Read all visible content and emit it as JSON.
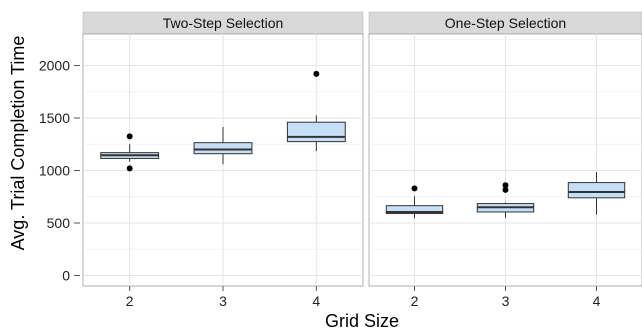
{
  "chart_data": {
    "type": "boxplot",
    "xlabel": "Grid Size",
    "ylabel": "Avg. Trial Completion Time",
    "ylim": [
      -100,
      2300
    ],
    "yticks": [
      0,
      500,
      1000,
      1500,
      2000
    ],
    "categories": [
      "2",
      "3",
      "4"
    ],
    "grid": true,
    "colors": {
      "box_fill": "#c6dff7",
      "box_stroke": "#333333",
      "strip_fill": "#d9d9d9",
      "panel_fill": "#ffffff",
      "grid": "#e6e6e6"
    },
    "panels": [
      {
        "title": "Two-Step Selection",
        "boxes": [
          {
            "category": "2",
            "whisker_low": 1085,
            "q1": 1115,
            "median": 1145,
            "q3": 1170,
            "whisker_high": 1250,
            "outliers": [
              1020,
              1325
            ]
          },
          {
            "category": "3",
            "whisker_low": 1060,
            "q1": 1160,
            "median": 1200,
            "q3": 1265,
            "whisker_high": 1415,
            "outliers": []
          },
          {
            "category": "4",
            "whisker_low": 1185,
            "q1": 1275,
            "median": 1320,
            "q3": 1460,
            "whisker_high": 1525,
            "outliers": [
              1920
            ]
          }
        ]
      },
      {
        "title": "One-Step Selection",
        "boxes": [
          {
            "category": "2",
            "whisker_low": 545,
            "q1": 590,
            "median": 605,
            "q3": 665,
            "whisker_high": 755,
            "outliers": [
              830
            ]
          },
          {
            "category": "3",
            "whisker_low": 550,
            "q1": 605,
            "median": 650,
            "q3": 685,
            "whisker_high": 695,
            "outliers": [
              815,
              860
            ]
          },
          {
            "category": "4",
            "whisker_low": 580,
            "q1": 740,
            "median": 795,
            "q3": 885,
            "whisker_high": 985,
            "outliers": []
          }
        ]
      }
    ]
  }
}
